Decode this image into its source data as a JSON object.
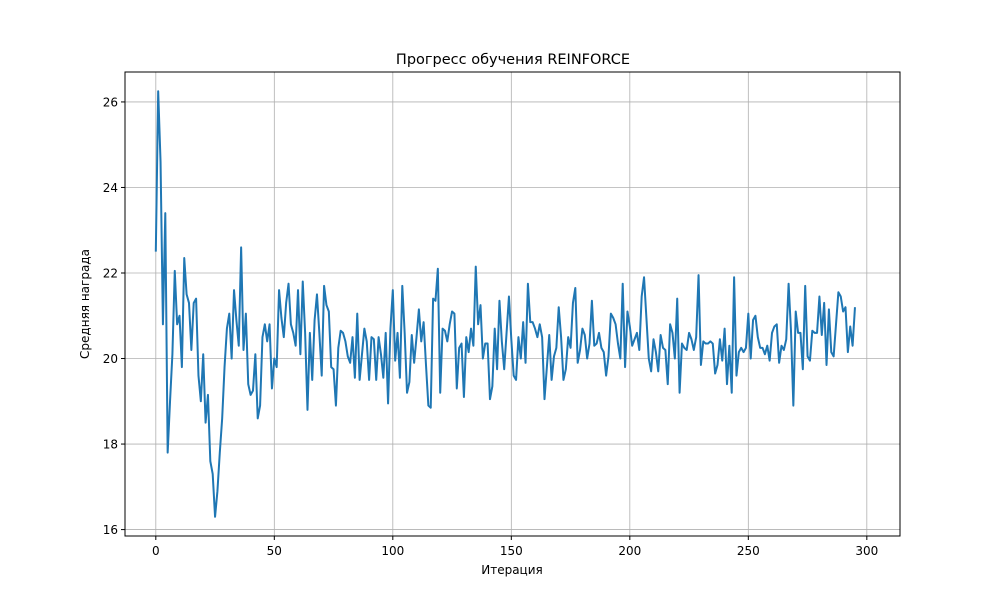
{
  "chart_data": {
    "type": "line",
    "title": "Прогресс обучения REINFORCE",
    "xlabel": "Итерация",
    "ylabel": "Средняя награда",
    "xlim": [
      -13,
      314
    ],
    "ylim": [
      15.85,
      26.7
    ],
    "x_ticks": [
      0,
      50,
      100,
      150,
      200,
      250,
      300
    ],
    "y_ticks": [
      16,
      18,
      20,
      22,
      24,
      26
    ],
    "grid": true,
    "series": [
      {
        "color": "#1f77b4",
        "x_start": 0,
        "x_step": 1,
        "values": [
          22.5,
          26.25,
          24.6,
          20.8,
          23.4,
          17.8,
          19.0,
          20.1,
          22.05,
          20.8,
          21.0,
          19.8,
          22.35,
          21.5,
          21.3,
          20.2,
          21.3,
          21.4,
          19.6,
          19.0,
          20.1,
          18.5,
          19.15,
          17.6,
          17.3,
          16.3,
          16.9,
          17.8,
          18.6,
          19.8,
          20.7,
          21.05,
          20.0,
          21.6,
          20.9,
          20.3,
          22.6,
          20.2,
          21.05,
          19.4,
          19.15,
          19.25,
          20.1,
          18.6,
          18.9,
          20.5,
          20.8,
          20.4,
          20.8,
          19.3,
          20.0,
          19.8,
          21.6,
          20.95,
          20.5,
          21.3,
          21.75,
          20.8,
          20.6,
          20.3,
          21.6,
          20.1,
          21.8,
          20.6,
          18.8,
          20.6,
          19.5,
          20.9,
          21.5,
          20.6,
          19.6,
          21.7,
          21.25,
          21.1,
          19.8,
          19.75,
          18.9,
          20.25,
          20.65,
          20.6,
          20.4,
          20.05,
          19.9,
          20.5,
          19.55,
          21.05,
          19.5,
          20.1,
          20.7,
          20.4,
          19.5,
          20.5,
          20.45,
          19.5,
          20.5,
          20.1,
          19.55,
          20.6,
          18.95,
          20.7,
          21.6,
          19.95,
          20.6,
          19.55,
          21.7,
          20.6,
          19.2,
          19.45,
          20.55,
          19.9,
          20.5,
          21.15,
          20.4,
          20.85,
          19.85,
          18.9,
          18.85,
          21.4,
          21.35,
          22.1,
          19.2,
          20.7,
          20.65,
          20.4,
          20.8,
          21.1,
          21.05,
          19.3,
          20.25,
          20.35,
          19.1,
          20.5,
          20.15,
          20.7,
          20.3,
          22.15,
          20.8,
          21.25,
          20.0,
          20.35,
          20.35,
          19.05,
          19.35,
          20.7,
          19.75,
          21.35,
          20.4,
          19.75,
          20.6,
          21.45,
          20.45,
          19.6,
          19.5,
          20.5,
          20.0,
          20.85,
          19.9,
          21.75,
          20.85,
          20.85,
          20.7,
          20.5,
          20.8,
          20.5,
          19.05,
          19.8,
          20.55,
          19.5,
          20.05,
          20.25,
          21.2,
          20.5,
          19.5,
          19.75,
          20.5,
          20.25,
          21.3,
          21.65,
          19.9,
          20.2,
          20.7,
          20.55,
          20.0,
          20.35,
          21.35,
          20.3,
          20.35,
          20.6,
          20.25,
          20.15,
          19.6,
          20.05,
          21.05,
          20.95,
          20.8,
          20.35,
          20.0,
          21.75,
          19.8,
          21.1,
          20.75,
          20.3,
          20.45,
          20.6,
          20.2,
          21.45,
          21.9,
          20.95,
          20.0,
          19.7,
          20.45,
          20.15,
          19.7,
          20.55,
          20.25,
          20.2,
          19.4,
          20.8,
          20.6,
          20.0,
          21.4,
          19.2,
          20.35,
          20.25,
          20.2,
          20.6,
          20.45,
          20.2,
          20.5,
          21.95,
          19.85,
          20.4,
          20.35,
          20.35,
          20.4,
          20.35,
          19.65,
          19.85,
          20.45,
          19.95,
          20.7,
          19.4,
          20.3,
          19.2,
          21.9,
          19.6,
          20.15,
          20.25,
          20.15,
          20.25,
          21.05,
          20.0,
          20.9,
          21.0,
          20.5,
          20.25,
          20.25,
          20.1,
          20.3,
          19.95,
          20.6,
          20.75,
          20.8,
          19.9,
          20.3,
          20.2,
          20.45,
          21.75,
          20.65,
          18.9,
          21.1,
          20.6,
          20.6,
          19.75,
          21.7,
          20.05,
          19.95,
          20.65,
          20.6,
          20.6,
          21.45,
          20.55,
          21.3,
          19.85,
          21.15,
          20.15,
          20.05,
          20.8,
          21.55,
          21.45,
          21.1,
          21.2,
          20.15,
          20.75,
          20.3,
          21.2
        ]
      }
    ]
  }
}
